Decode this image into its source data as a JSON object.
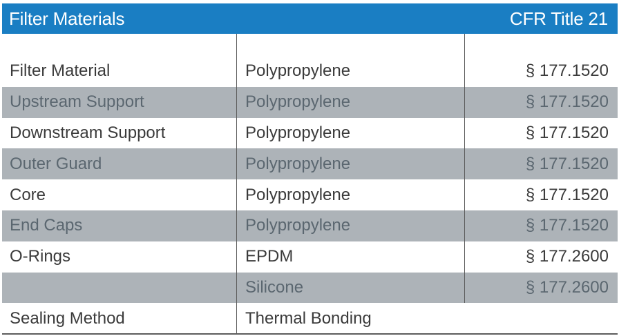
{
  "header": {
    "title": "Filter Materials",
    "right_label": "CFR Title 21"
  },
  "rows": [
    {
      "component": "Filter Material",
      "material": "Polypropylene",
      "cfr": "§ 177.1520",
      "shaded": false
    },
    {
      "component": "Upstream Support",
      "material": "Polypropylene",
      "cfr": "§ 177.1520",
      "shaded": true
    },
    {
      "component": "Downstream Support",
      "material": "Polypropylene",
      "cfr": "§ 177.1520",
      "shaded": false
    },
    {
      "component": "Outer Guard",
      "material": "Polypropylene",
      "cfr": "§ 177.1520",
      "shaded": true
    },
    {
      "component": "Core",
      "material": "Polypropylene",
      "cfr": "§ 177.1520",
      "shaded": false
    },
    {
      "component": "End Caps",
      "material": "Polypropylene",
      "cfr": "§ 177.1520",
      "shaded": true
    },
    {
      "component": "O-Rings",
      "material": "EPDM",
      "cfr": "§ 177.2600",
      "shaded": false
    },
    {
      "component": "",
      "material": "Silicone",
      "cfr": "§ 177.2600",
      "shaded": true
    },
    {
      "component": "Sealing Method",
      "material": "Thermal Bonding",
      "cfr": "",
      "shaded": false
    }
  ],
  "colors": {
    "header_bg": "#1a7ec3",
    "shaded_row": "#adb3b8"
  }
}
